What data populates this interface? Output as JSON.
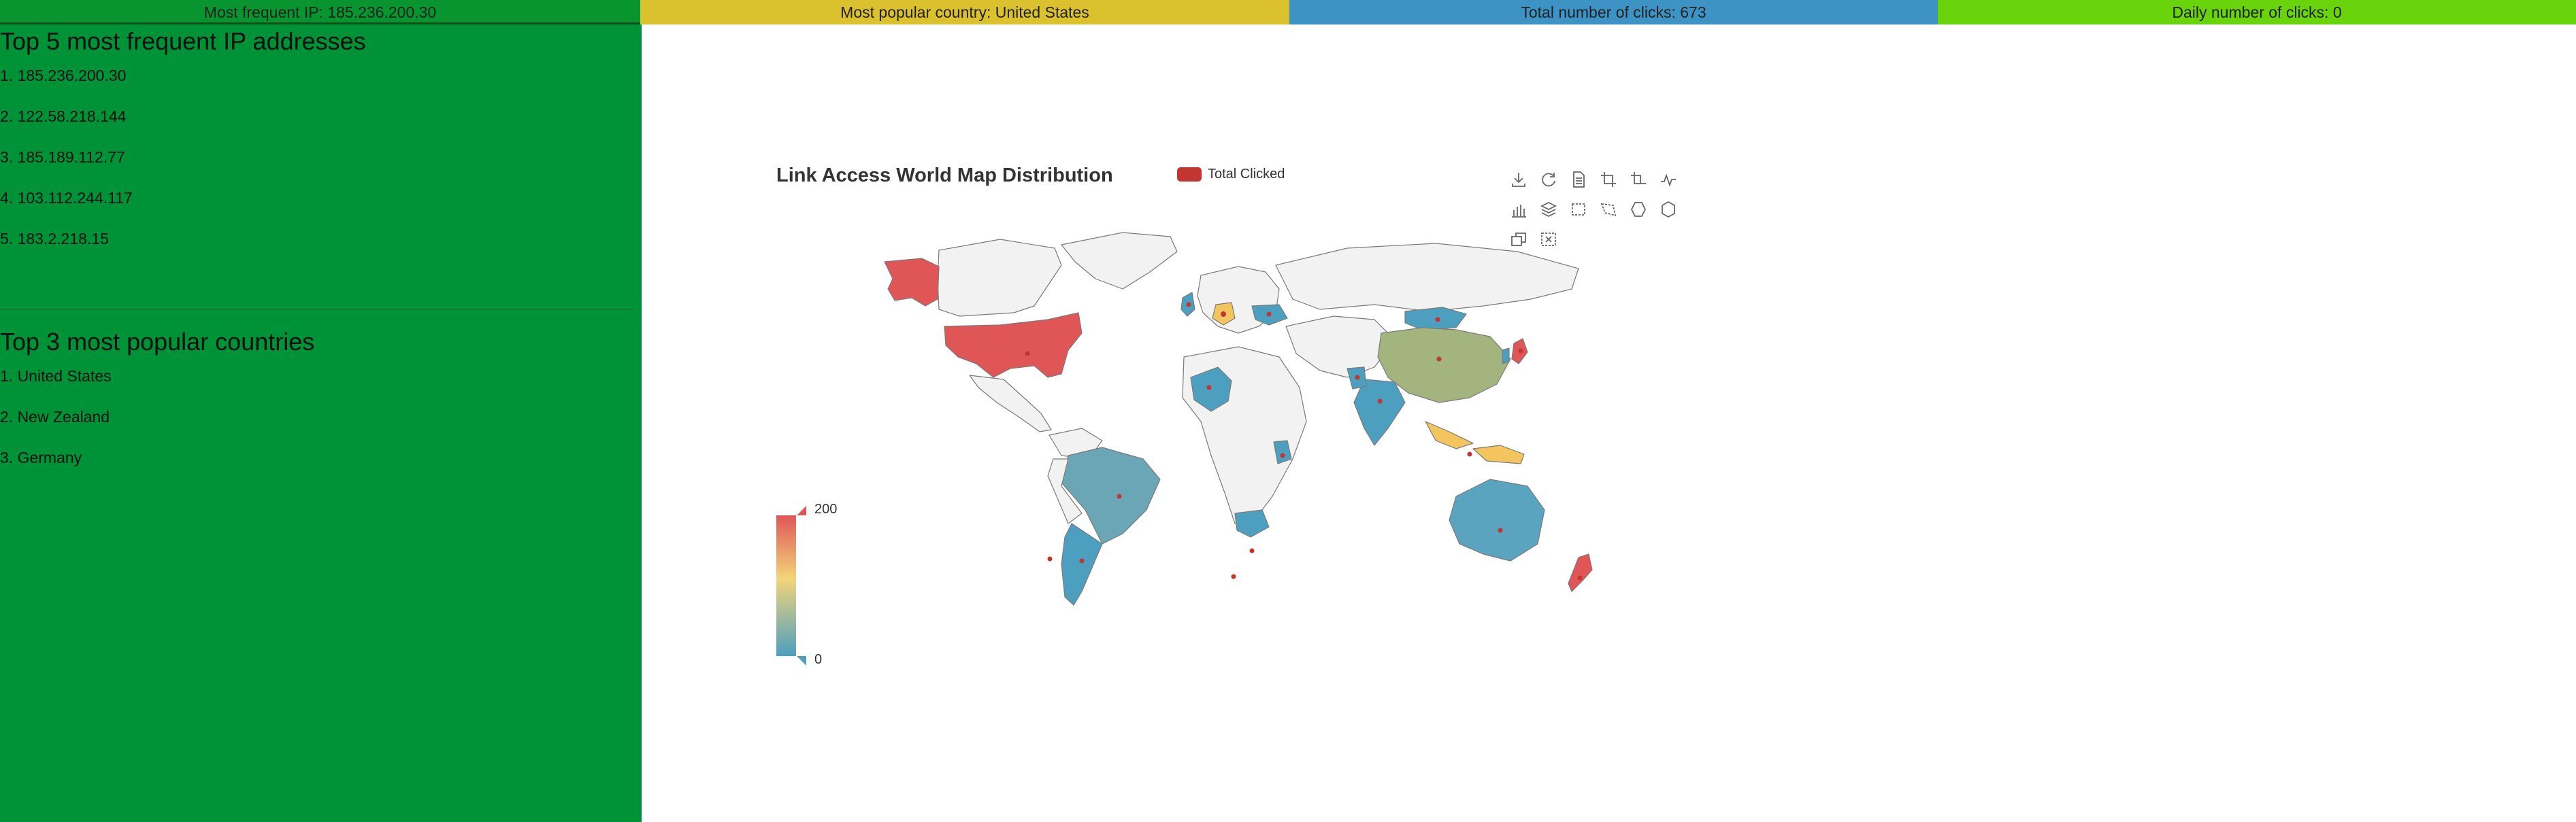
{
  "topbar": {
    "most_frequent_ip": "Most frequent IP: 185.236.200.30",
    "most_popular_country": "Most popular country: United States",
    "total_clicks": "Total number of clicks: 673",
    "daily_clicks": "Daily number of clicks: 0"
  },
  "sidebar": {
    "ip_title": "Top 5 most frequent IP addresses",
    "ips": [
      "1. 185.236.200.30",
      "2. 122.58.218.144",
      "3. 185.189.112.77",
      "4. 103.112.244.117",
      "5. 183.2.218.15"
    ],
    "country_title": "Top 3 most popular countries",
    "countries": [
      "1. United States",
      "2. New Zealand",
      "3. Germany"
    ]
  },
  "chart": {
    "title": "Link Access World Map Distribution",
    "legend": "Total Clicked",
    "visual_map": {
      "max": "200",
      "min": "0"
    },
    "toolbox_icons": [
      "download-icon",
      "refresh-icon",
      "data-view-icon",
      "zoom-icon",
      "zoom-reset-icon",
      "line-chart-icon",
      "bar-chart-icon",
      "stack-icon",
      "rect-select-icon",
      "polygon-select-icon",
      "keep-select-icon",
      "clear-select-icon",
      "restore-icon",
      "crop-icon"
    ]
  },
  "colors": {
    "accent": "#c23531",
    "low": "#4d9fc0",
    "mid": "#f3d47a",
    "high": "#e05657"
  }
}
